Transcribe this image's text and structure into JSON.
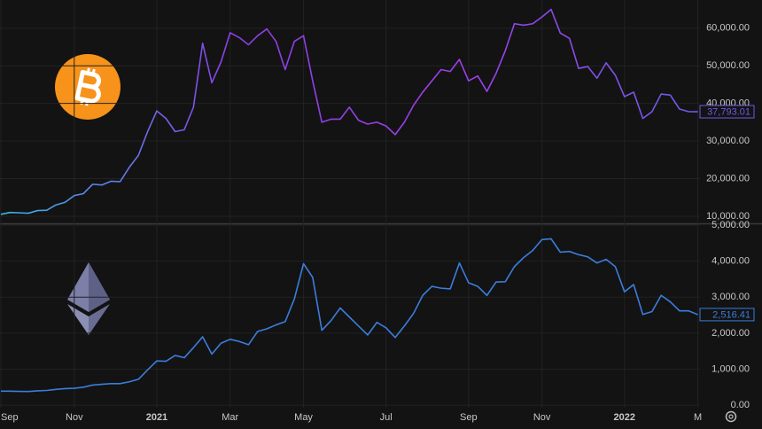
{
  "chart_data": [
    {
      "type": "line",
      "ylim": [
        8100,
        67500
      ],
      "yticks": [
        {
          "value": 10000,
          "label": "10,000.00"
        },
        {
          "value": 20000,
          "label": "20,000.00"
        },
        {
          "value": 30000,
          "label": "30,000.00"
        },
        {
          "value": 40000,
          "label": "40,000.00"
        },
        {
          "value": 50000,
          "label": "50,000.00"
        },
        {
          "value": 60000,
          "label": "60,000.00"
        }
      ],
      "grid": true,
      "series": [
        {
          "gradient": [
            "#38b6e8",
            "#8a3fe6",
            "#9d3fe8",
            "#6d5ce6"
          ],
          "values": [
            10500,
            11000,
            10900,
            10800,
            11500,
            11600,
            13000,
            13700,
            15500,
            16000,
            18500,
            18300,
            19300,
            19200,
            23000,
            26200,
            32500,
            38000,
            36000,
            32500,
            33000,
            39000,
            56000,
            45500,
            51000,
            58800,
            57500,
            55600,
            58000,
            59800,
            56500,
            49000,
            56500,
            58000,
            46000,
            35000,
            35800,
            35800,
            39000,
            35500,
            34500,
            35000,
            34000,
            31700,
            35000,
            39500,
            43000,
            46000,
            49000,
            48500,
            51700,
            46000,
            47300,
            43200,
            48000,
            54000,
            61200,
            60800,
            61200,
            63000,
            65000,
            58700,
            57300,
            49300,
            49800,
            46700,
            50800,
            47500,
            41800,
            43000,
            36000,
            37800,
            42500,
            42200,
            38500,
            37800,
            37793.01
          ],
          "value_labels": [
            null,
            null,
            null,
            null,
            null,
            null,
            null,
            null,
            null,
            null,
            null,
            null,
            null,
            null,
            null,
            null,
            null,
            null,
            null,
            null,
            null,
            null,
            null,
            null,
            null,
            null,
            null,
            null,
            null,
            null,
            null,
            null,
            null,
            null,
            null,
            null,
            null,
            null,
            null,
            null,
            null,
            null,
            null,
            null,
            null,
            null,
            null,
            null,
            null,
            null,
            null,
            null,
            null,
            null,
            null,
            null,
            null,
            null,
            null,
            null,
            null,
            null,
            null,
            null,
            null,
            null,
            null,
            null,
            null,
            null,
            null,
            null,
            null,
            null,
            null,
            null,
            "37,793.01"
          ]
        }
      ]
    },
    {
      "type": "line",
      "categories": [
        "Sep",
        null,
        null,
        null,
        null,
        null,
        null,
        null,
        "Nov",
        null,
        null,
        null,
        null,
        null,
        null,
        null,
        null,
        "2021",
        null,
        null,
        null,
        null,
        null,
        null,
        null,
        "Mar",
        null,
        null,
        null,
        null,
        null,
        null,
        null,
        "May",
        null,
        null,
        null,
        null,
        null,
        null,
        null,
        null,
        "Jul",
        null,
        null,
        null,
        null,
        null,
        null,
        null,
        null,
        "Sep",
        null,
        null,
        null,
        null,
        null,
        null,
        null,
        "Nov",
        null,
        null,
        null,
        null,
        null,
        null,
        null,
        null,
        "2022",
        null,
        null,
        null,
        null,
        null,
        null,
        null,
        "M"
      ],
      "ylim": [
        -70,
        5050
      ],
      "yticks": [
        {
          "value": 0,
          "label": "0.00"
        },
        {
          "value": 1000,
          "label": "1,000.00"
        },
        {
          "value": 2000,
          "label": "2,000.00"
        },
        {
          "value": 3000,
          "label": "3,000.00"
        },
        {
          "value": 4000,
          "label": "4,000.00"
        },
        {
          "value": 5000,
          "label": "5,000.00"
        }
      ],
      "grid": true,
      "series": [
        {
          "color": "#3b7ddd",
          "values": [
            390,
            390,
            385,
            380,
            400,
            410,
            440,
            460,
            470,
            500,
            560,
            580,
            600,
            600,
            650,
            720,
            980,
            1230,
            1220,
            1380,
            1320,
            1600,
            1900,
            1420,
            1720,
            1830,
            1770,
            1680,
            2050,
            2120,
            2230,
            2320,
            2950,
            3930,
            3550,
            2080,
            2350,
            2700,
            2450,
            2200,
            1950,
            2300,
            2150,
            1880,
            2200,
            2550,
            3050,
            3300,
            3250,
            3230,
            3950,
            3400,
            3300,
            3050,
            3420,
            3430,
            3850,
            4100,
            4300,
            4600,
            4620,
            4250,
            4270,
            4180,
            4120,
            3950,
            4050,
            3850,
            3150,
            3350,
            2520,
            2600,
            3050,
            2870,
            2620,
            2620,
            2516.41
          ],
          "value_labels": [
            null,
            null,
            null,
            null,
            null,
            null,
            null,
            null,
            null,
            null,
            null,
            null,
            null,
            null,
            null,
            null,
            null,
            null,
            null,
            null,
            null,
            null,
            null,
            null,
            null,
            null,
            null,
            null,
            null,
            null,
            null,
            null,
            null,
            null,
            null,
            null,
            null,
            null,
            null,
            null,
            null,
            null,
            null,
            null,
            null,
            null,
            null,
            null,
            null,
            null,
            null,
            null,
            null,
            null,
            null,
            null,
            null,
            null,
            null,
            null,
            null,
            null,
            null,
            null,
            null,
            null,
            null,
            null,
            null,
            null,
            null,
            null,
            null,
            null,
            null,
            null,
            "2,516.41"
          ]
        }
      ]
    }
  ]
}
